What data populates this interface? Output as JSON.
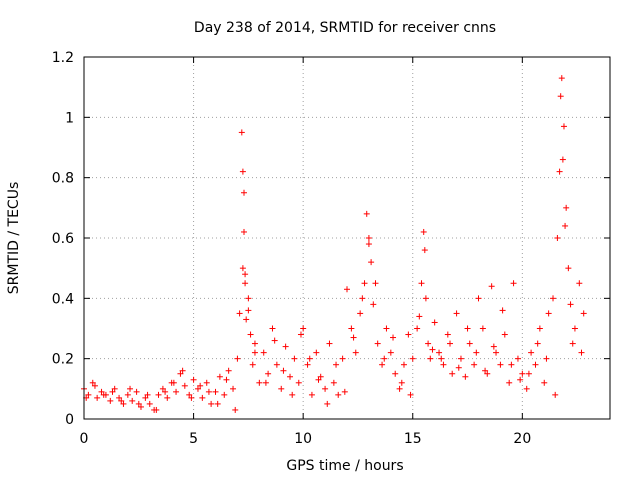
{
  "chart_data": {
    "type": "scatter",
    "title": "Day 238 of 2014, SRMTID for receiver cnns",
    "xlabel": "GPS time / hours",
    "ylabel": "SRMTID / TECUs",
    "xlim": [
      0,
      24
    ],
    "ylim": [
      0,
      1.2
    ],
    "x_ticks": [
      0,
      5,
      10,
      15,
      20
    ],
    "y_ticks": [
      0,
      0.2,
      0.4,
      0.6,
      0.8,
      1,
      1.2
    ],
    "x_tick_labels": [
      "0",
      "5",
      "10",
      "15",
      "20"
    ],
    "y_tick_labels": [
      "0",
      "0.2",
      "0.4",
      "0.6",
      "0.8",
      "1",
      "1.2"
    ],
    "grid": true,
    "marker": "+",
    "color": "#ff0000",
    "series": [
      {
        "name": "SRMTID",
        "x": [
          0.0,
          0.2,
          0.4,
          0.6,
          0.8,
          1.0,
          1.2,
          1.4,
          1.6,
          1.8,
          2.0,
          2.2,
          2.4,
          2.6,
          2.8,
          3.0,
          3.2,
          3.4,
          3.6,
          3.8,
          4.0,
          4.2,
          4.4,
          4.6,
          4.8,
          5.0,
          5.2,
          5.4,
          5.6,
          5.8,
          6.0,
          6.2,
          6.4,
          6.6,
          6.8,
          7.0,
          7.1,
          7.2,
          7.25,
          7.3,
          7.35,
          7.4,
          7.5,
          7.6,
          7.7,
          7.8,
          8.0,
          8.2,
          8.4,
          8.6,
          8.8,
          9.0,
          9.2,
          9.4,
          9.6,
          9.8,
          10.0,
          10.2,
          10.4,
          10.6,
          10.8,
          11.0,
          11.2,
          11.4,
          11.6,
          11.8,
          12.0,
          12.2,
          12.4,
          12.6,
          12.8,
          12.9,
          13.0,
          13.1,
          13.2,
          13.4,
          13.6,
          13.8,
          14.0,
          14.2,
          14.4,
          14.6,
          14.8,
          15.0,
          15.2,
          15.4,
          15.5,
          15.6,
          15.7,
          15.8,
          16.0,
          16.2,
          16.4,
          16.6,
          16.8,
          17.0,
          17.2,
          17.4,
          17.6,
          17.8,
          18.0,
          18.2,
          18.4,
          18.6,
          18.8,
          19.0,
          19.2,
          19.4,
          19.6,
          19.8,
          20.0,
          20.2,
          20.4,
          20.6,
          20.8,
          21.0,
          21.2,
          21.4,
          21.6,
          21.7,
          21.8,
          21.9,
          22.0,
          22.1,
          22.2,
          22.4,
          22.6,
          22.8,
          0.1,
          0.5,
          0.9,
          1.3,
          1.7,
          2.1,
          2.5,
          2.9,
          3.3,
          3.7,
          4.1,
          4.5,
          4.9,
          5.3,
          5.7,
          6.1,
          6.5,
          6.9,
          7.25,
          7.3,
          7.35,
          7.5,
          7.8,
          8.3,
          8.7,
          9.1,
          9.5,
          9.9,
          10.3,
          10.7,
          11.1,
          11.5,
          11.9,
          12.3,
          12.7,
          13.0,
          13.3,
          13.7,
          14.1,
          14.5,
          14.9,
          15.3,
          15.55,
          15.9,
          16.3,
          16.7,
          17.1,
          17.5,
          17.9,
          18.3,
          18.7,
          19.1,
          19.5,
          19.9,
          20.3,
          20.7,
          21.1,
          21.5,
          21.75,
          21.85,
          21.95,
          22.3,
          22.7
        ],
        "y": [
          0.1,
          0.08,
          0.12,
          0.07,
          0.09,
          0.08,
          0.06,
          0.1,
          0.07,
          0.05,
          0.08,
          0.06,
          0.09,
          0.04,
          0.07,
          0.05,
          0.03,
          0.08,
          0.1,
          0.07,
          0.12,
          0.09,
          0.15,
          0.11,
          0.08,
          0.13,
          0.1,
          0.07,
          0.12,
          0.05,
          0.09,
          0.14,
          0.08,
          0.16,
          0.1,
          0.2,
          0.35,
          0.95,
          0.82,
          0.62,
          0.45,
          0.33,
          0.4,
          0.28,
          0.18,
          0.25,
          0.12,
          0.22,
          0.15,
          0.3,
          0.18,
          0.1,
          0.24,
          0.14,
          0.2,
          0.12,
          0.3,
          0.18,
          0.08,
          0.22,
          0.14,
          0.1,
          0.25,
          0.12,
          0.08,
          0.2,
          0.43,
          0.3,
          0.22,
          0.35,
          0.45,
          0.68,
          0.6,
          0.52,
          0.38,
          0.25,
          0.18,
          0.3,
          0.22,
          0.15,
          0.1,
          0.18,
          0.28,
          0.2,
          0.3,
          0.45,
          0.62,
          0.4,
          0.25,
          0.2,
          0.32,
          0.22,
          0.18,
          0.28,
          0.15,
          0.35,
          0.2,
          0.14,
          0.25,
          0.18,
          0.4,
          0.3,
          0.15,
          0.44,
          0.22,
          0.18,
          0.28,
          0.12,
          0.45,
          0.2,
          0.15,
          0.1,
          0.22,
          0.18,
          0.3,
          0.12,
          0.35,
          0.4,
          0.6,
          0.82,
          1.13,
          0.97,
          0.7,
          0.5,
          0.38,
          0.3,
          0.45,
          0.35,
          0.07,
          0.11,
          0.08,
          0.09,
          0.06,
          0.1,
          0.05,
          0.08,
          0.03,
          0.09,
          0.12,
          0.16,
          0.07,
          0.11,
          0.09,
          0.05,
          0.13,
          0.03,
          0.5,
          0.75,
          0.48,
          0.36,
          0.22,
          0.12,
          0.26,
          0.16,
          0.08,
          0.28,
          0.2,
          0.13,
          0.05,
          0.18,
          0.09,
          0.27,
          0.4,
          0.58,
          0.45,
          0.2,
          0.27,
          0.12,
          0.08,
          0.34,
          0.56,
          0.23,
          0.2,
          0.25,
          0.17,
          0.3,
          0.22,
          0.16,
          0.24,
          0.36,
          0.18,
          0.13,
          0.15,
          0.25,
          0.2,
          0.08,
          1.07,
          0.86,
          0.64,
          0.25,
          0.22
        ]
      }
    ]
  }
}
